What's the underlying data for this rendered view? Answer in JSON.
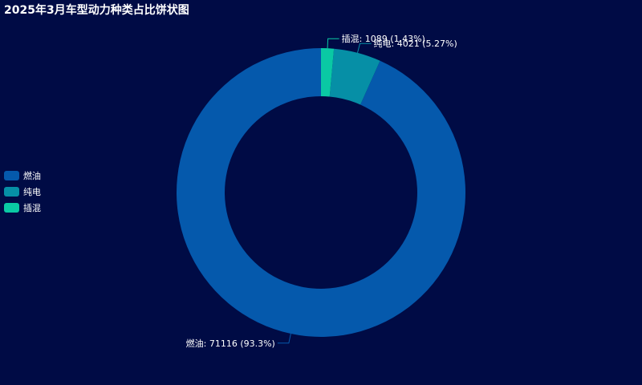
{
  "chart_data": {
    "type": "pie",
    "title": "2025年3月车型动力种类占比饼状图",
    "donut": true,
    "legend_position": "left",
    "slices": [
      {
        "name": "燃油",
        "value": 71116,
        "percent_label": "93.3%",
        "color": "#0559ac"
      },
      {
        "name": "纯电",
        "value": 4021,
        "percent_label": "5.27%",
        "color": "#068fa6"
      },
      {
        "name": "插混",
        "value": 1089,
        "percent_label": "1.43%",
        "color": "#0ac9a4"
      }
    ],
    "label_color": "#ffffff",
    "background": "#000b45"
  }
}
